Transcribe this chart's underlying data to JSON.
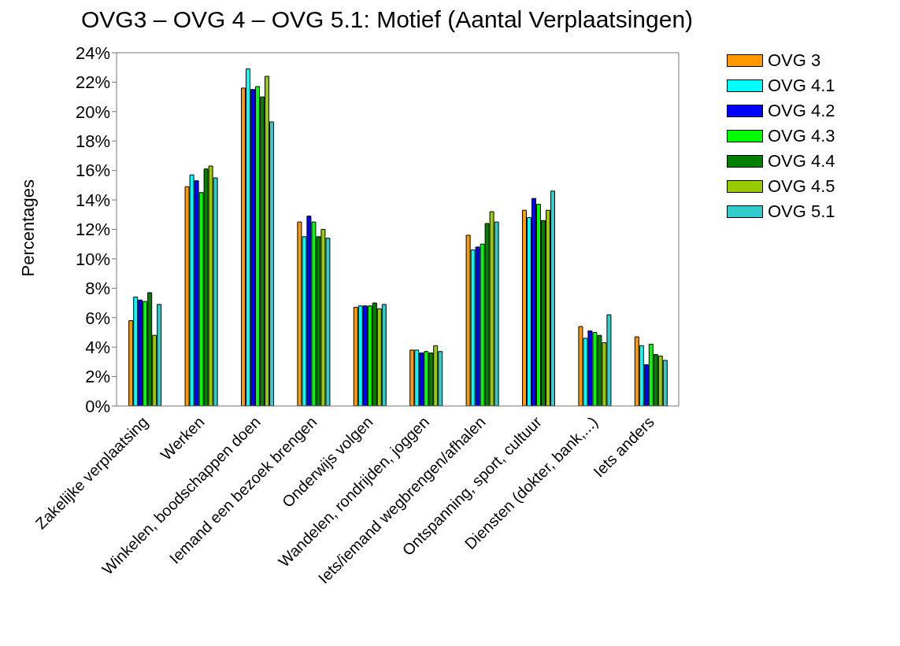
{
  "chart_data": {
    "type": "bar",
    "title": "OVG3  –  OVG 4  –  OVG 5.1: Motief (Aantal Verplaatsingen)",
    "ylabel": "Percentages",
    "categories": [
      "Zakelijke verplaatsing",
      "Werken",
      "Winkelen, boodschappen doen",
      "Iemand een bezoek brengen",
      "Onderwijs volgen",
      "Wandelen, rondrijden, joggen",
      "Iets/iemand wegbrengen/afhalen",
      "Ontspanning, sport, cultuur",
      "Diensten (dokter, bank,...)",
      "Iets anders"
    ],
    "series": [
      {
        "name": "OVG 3",
        "color": "#ff9900",
        "values": [
          5.8,
          14.9,
          21.6,
          12.5,
          6.7,
          3.8,
          11.6,
          13.3,
          5.4,
          4.7
        ]
      },
      {
        "name": "OVG 4.1",
        "color": "#00ffff",
        "values": [
          7.4,
          15.7,
          22.9,
          11.5,
          6.8,
          3.8,
          10.6,
          12.8,
          4.6,
          4.1
        ]
      },
      {
        "name": "OVG 4.2",
        "color": "#0000ff",
        "values": [
          7.2,
          15.3,
          21.5,
          12.9,
          6.8,
          3.6,
          10.8,
          14.1,
          5.1,
          2.8
        ]
      },
      {
        "name": "OVG 4.3",
        "color": "#00ff00",
        "values": [
          7.1,
          14.5,
          21.7,
          12.5,
          6.8,
          3.7,
          11.0,
          13.7,
          5.0,
          4.2
        ]
      },
      {
        "name": "OVG 4.4",
        "color": "#008000",
        "values": [
          7.7,
          16.1,
          21.0,
          11.5,
          7.0,
          3.6,
          12.4,
          12.6,
          4.8,
          3.5
        ]
      },
      {
        "name": "OVG 4.5",
        "color": "#99cc00",
        "values": [
          4.8,
          16.3,
          22.4,
          12.0,
          6.6,
          4.1,
          13.2,
          13.3,
          4.3,
          3.4
        ]
      },
      {
        "name": "OVG 5.1",
        "color": "#33cccc",
        "values": [
          6.9,
          15.5,
          19.3,
          11.4,
          6.9,
          3.7,
          12.5,
          14.6,
          6.2,
          3.1
        ]
      }
    ],
    "ylim": [
      0,
      24
    ],
    "yticks": [
      {
        "value": 0,
        "label": "0%"
      },
      {
        "value": 2,
        "label": "2%"
      },
      {
        "value": 4,
        "label": "4%"
      },
      {
        "value": 6,
        "label": "6%"
      },
      {
        "value": 8,
        "label": "8%"
      },
      {
        "value": 10,
        "label": "10%"
      },
      {
        "value": 12,
        "label": "12%"
      },
      {
        "value": 14,
        "label": "14%"
      },
      {
        "value": 16,
        "label": "16%"
      },
      {
        "value": 18,
        "label": "18%"
      },
      {
        "value": 20,
        "label": "20%"
      },
      {
        "value": 22,
        "label": "22%"
      },
      {
        "value": 24,
        "label": "24%"
      }
    ],
    "grid": false,
    "legend": "top right"
  }
}
